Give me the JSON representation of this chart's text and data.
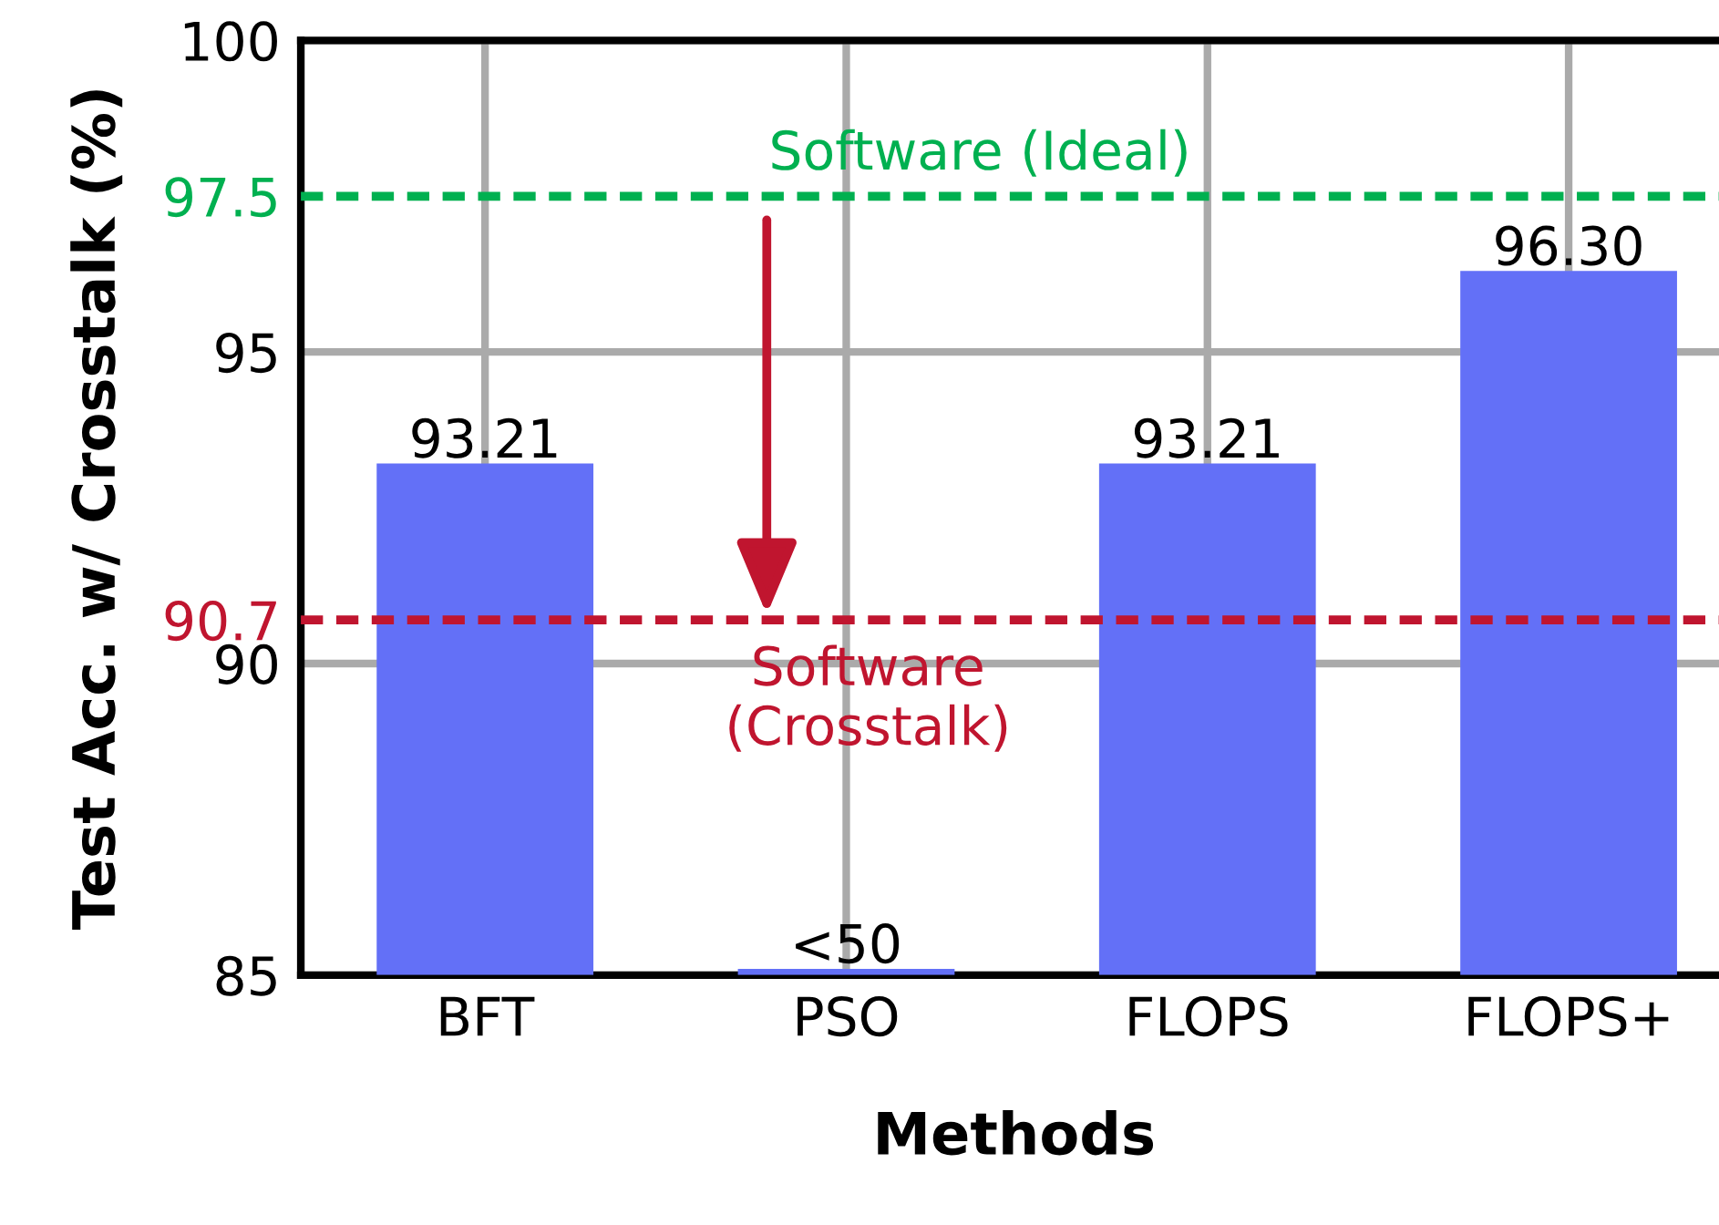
{
  "chart_data": {
    "type": "bar",
    "xlabel": "Methods",
    "ylabel": "Test Acc. w/ Crosstalk (%)",
    "categories": [
      "BFT",
      "PSO",
      "FLOPS",
      "FLOPS+"
    ],
    "values": [
      93.21,
      85.1,
      93.21,
      96.3
    ],
    "value_labels": [
      "93.21",
      "<50",
      "93.21",
      "96.30"
    ],
    "color": "#6370f7",
    "ylim": [
      85,
      100
    ],
    "yticks": [
      85,
      90,
      {
        "value": 90.7,
        "label": "90.7"
      },
      95,
      {
        "value": 97.5,
        "label": "97.5"
      },
      100
    ],
    "grid": true,
    "ref_lines": [
      {
        "axis": "y",
        "value": 97.5,
        "label": "Software (Ideal)",
        "color": "#00b050",
        "line_style": "dashed"
      },
      {
        "axis": "y",
        "value": 90.7,
        "label": "Software\n(Crosstalk)",
        "color": "#c0152f",
        "line_style": "dashed"
      }
    ]
  }
}
